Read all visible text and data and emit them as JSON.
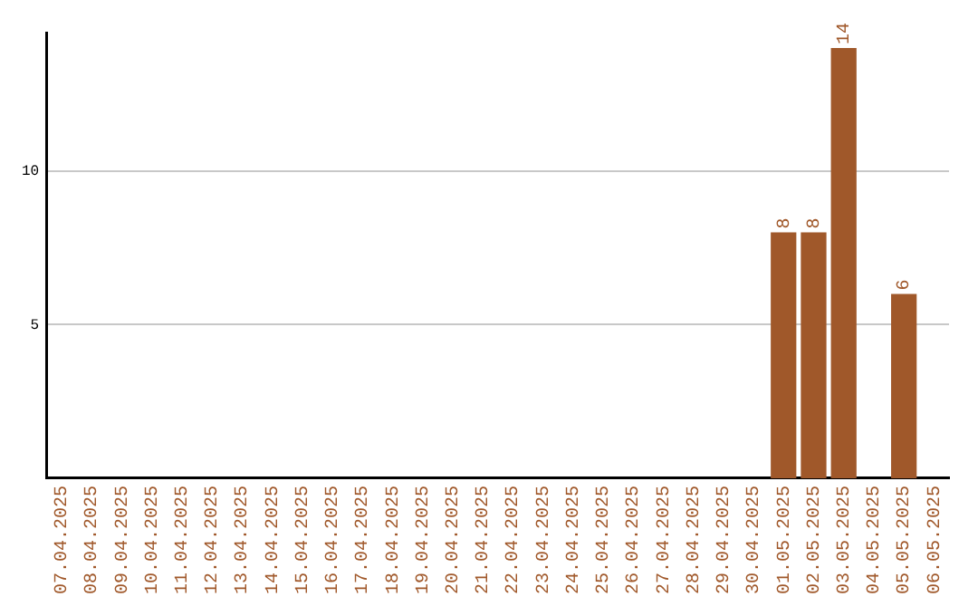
{
  "chart_data": {
    "type": "bar",
    "categories": [
      "07.04.2025",
      "08.04.2025",
      "09.04.2025",
      "10.04.2025",
      "11.04.2025",
      "12.04.2025",
      "13.04.2025",
      "14.04.2025",
      "15.04.2025",
      "16.04.2025",
      "17.04.2025",
      "18.04.2025",
      "19.04.2025",
      "20.04.2025",
      "21.04.2025",
      "22.04.2025",
      "23.04.2025",
      "24.04.2025",
      "25.04.2025",
      "26.04.2025",
      "27.04.2025",
      "28.04.2025",
      "29.04.2025",
      "30.04.2025",
      "01.05.2025",
      "02.05.2025",
      "03.05.2025",
      "04.05.2025",
      "05.05.2025",
      "06.05.2025"
    ],
    "values": [
      0,
      0,
      0,
      0,
      0,
      0,
      0,
      0,
      0,
      0,
      0,
      0,
      0,
      0,
      0,
      0,
      0,
      0,
      0,
      0,
      0,
      0,
      0,
      0,
      8,
      8,
      14,
      0,
      6,
      0
    ],
    "value_labels": [
      null,
      null,
      null,
      null,
      null,
      null,
      null,
      null,
      null,
      null,
      null,
      null,
      null,
      null,
      null,
      null,
      null,
      null,
      null,
      null,
      null,
      null,
      null,
      null,
      "8",
      "8",
      "14",
      null,
      "6",
      null
    ],
    "color": "#a0582a",
    "ylim": [
      0,
      14.5
    ],
    "yticks": [
      5,
      10
    ],
    "grid": "y",
    "legend": false
  }
}
